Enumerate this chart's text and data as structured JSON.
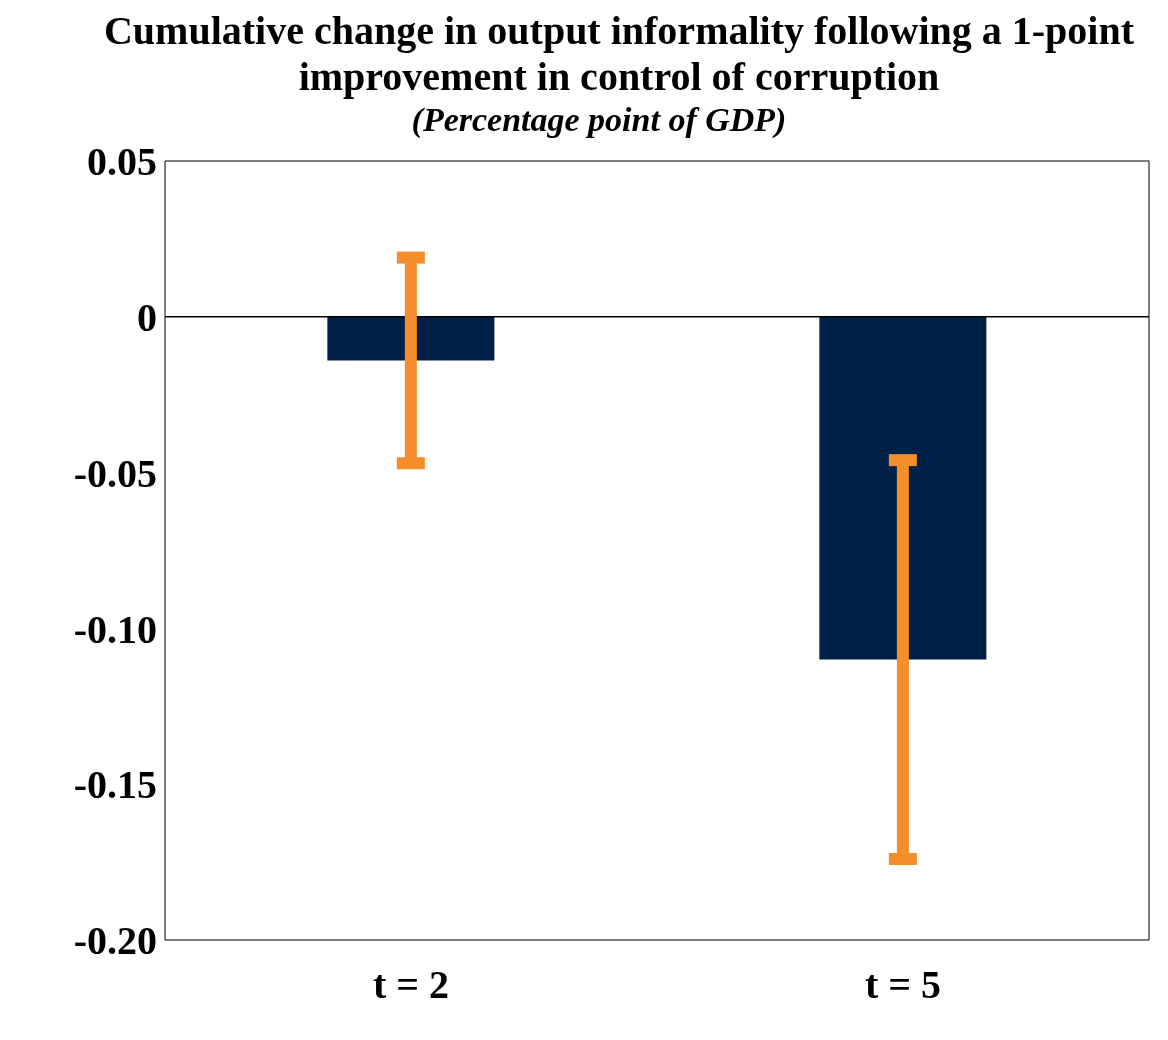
{
  "chart_data": {
    "type": "bar",
    "title": "Cumulative change in output informality following a 1-point improvement in control of corruption",
    "subtitle": "(Percentage point of GDP)",
    "categories": [
      "t = 2",
      "t = 5"
    ],
    "series": [
      {
        "color": "#002147",
        "values": [
          -0.014,
          -0.11
        ],
        "errors": [
          0.033,
          0.064
        ]
      }
    ],
    "ylim": [
      -0.2,
      0.05
    ],
    "yticks": [
      0.05,
      0,
      {
        "value": -0.05,
        "label": "-0.05"
      },
      {
        "value": -0.1,
        "label": "-0.10"
      },
      {
        "value": -0.15,
        "label": "-0.15"
      },
      {
        "value": -0.2,
        "label": "-0.20"
      }
    ],
    "ref_lines": [
      {
        "axis": "y",
        "value": 0,
        "color": "#000000"
      }
    ],
    "grid": false,
    "legend": false
  }
}
